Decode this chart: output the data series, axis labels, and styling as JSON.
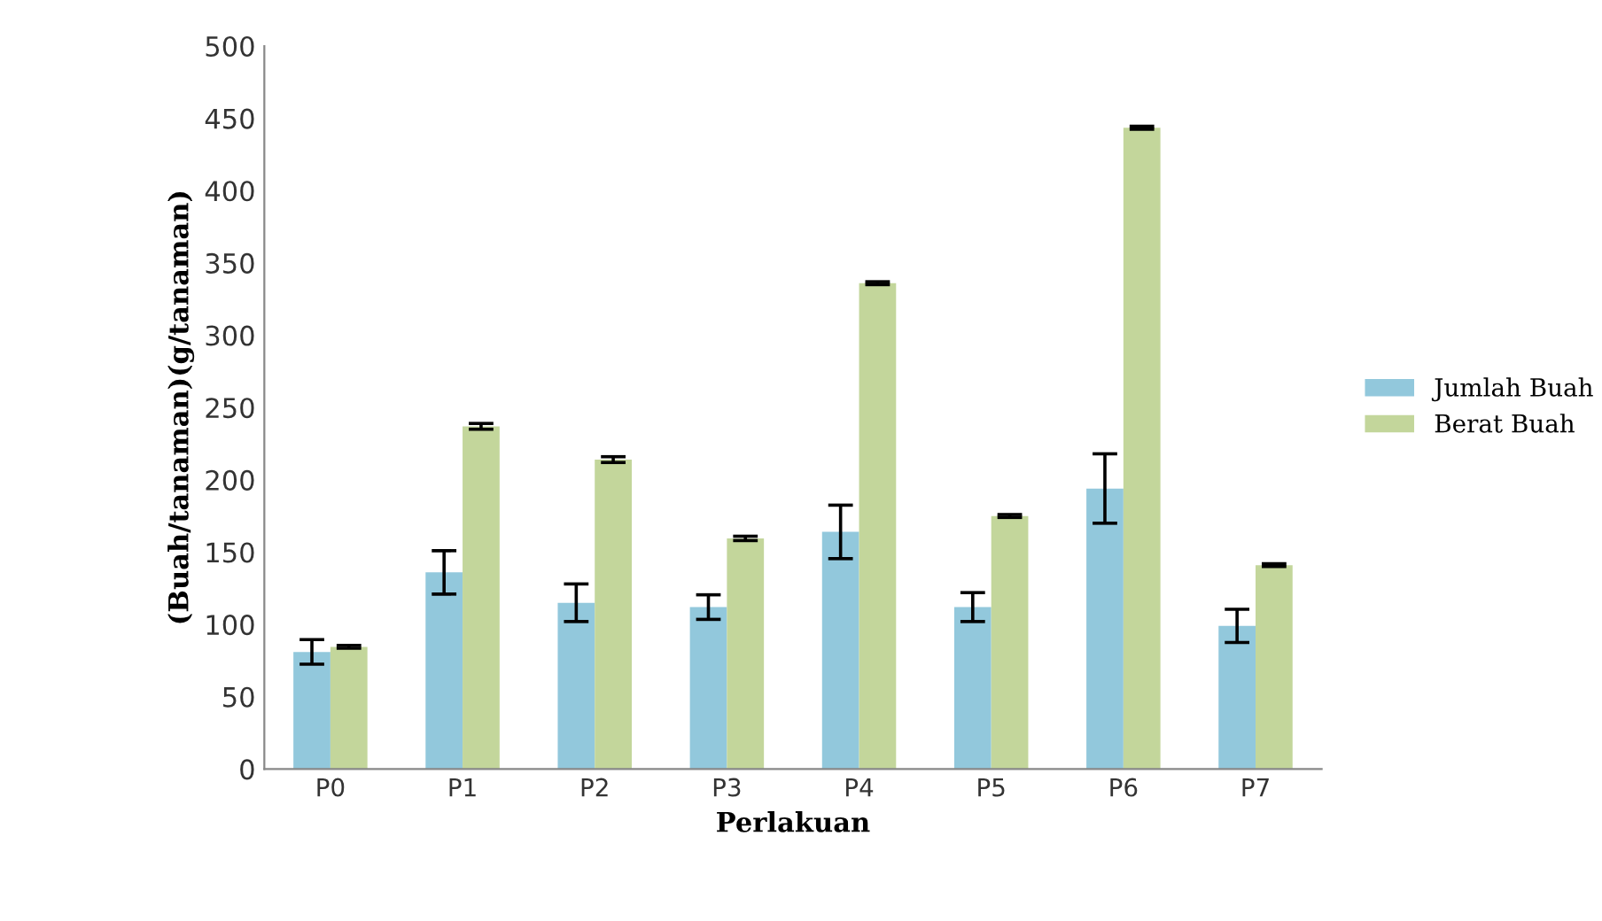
{
  "chart_data": {
    "type": "bar",
    "xlabel": "Perlakuan",
    "ylabel": "(Buah/tanaman)(g/tanaman)",
    "categories": [
      "P0",
      "P1",
      "P2",
      "P3",
      "P4",
      "P5",
      "P6",
      "P7"
    ],
    "series": [
      {
        "name": "Jumlah Buah",
        "color": "#92c8dc",
        "values": [
          81,
          136,
          115,
          112,
          164,
          112,
          194,
          99
        ],
        "errors": [
          8.5,
          15,
          13,
          8.5,
          18.5,
          10,
          24,
          11.5
        ]
      },
      {
        "name": "Berat Buah",
        "color": "#c3d69b",
        "values": [
          84.5,
          237,
          214,
          159.5,
          336,
          175,
          443.5,
          141
        ],
        "errors": [
          1,
          2,
          2,
          1.5,
          1,
          1,
          1,
          1
        ]
      }
    ],
    "ylim": [
      0,
      500
    ],
    "yticks": [
      0,
      50,
      100,
      150,
      200,
      250,
      300,
      350,
      400,
      450,
      500
    ],
    "grid": false,
    "legend": "right"
  }
}
